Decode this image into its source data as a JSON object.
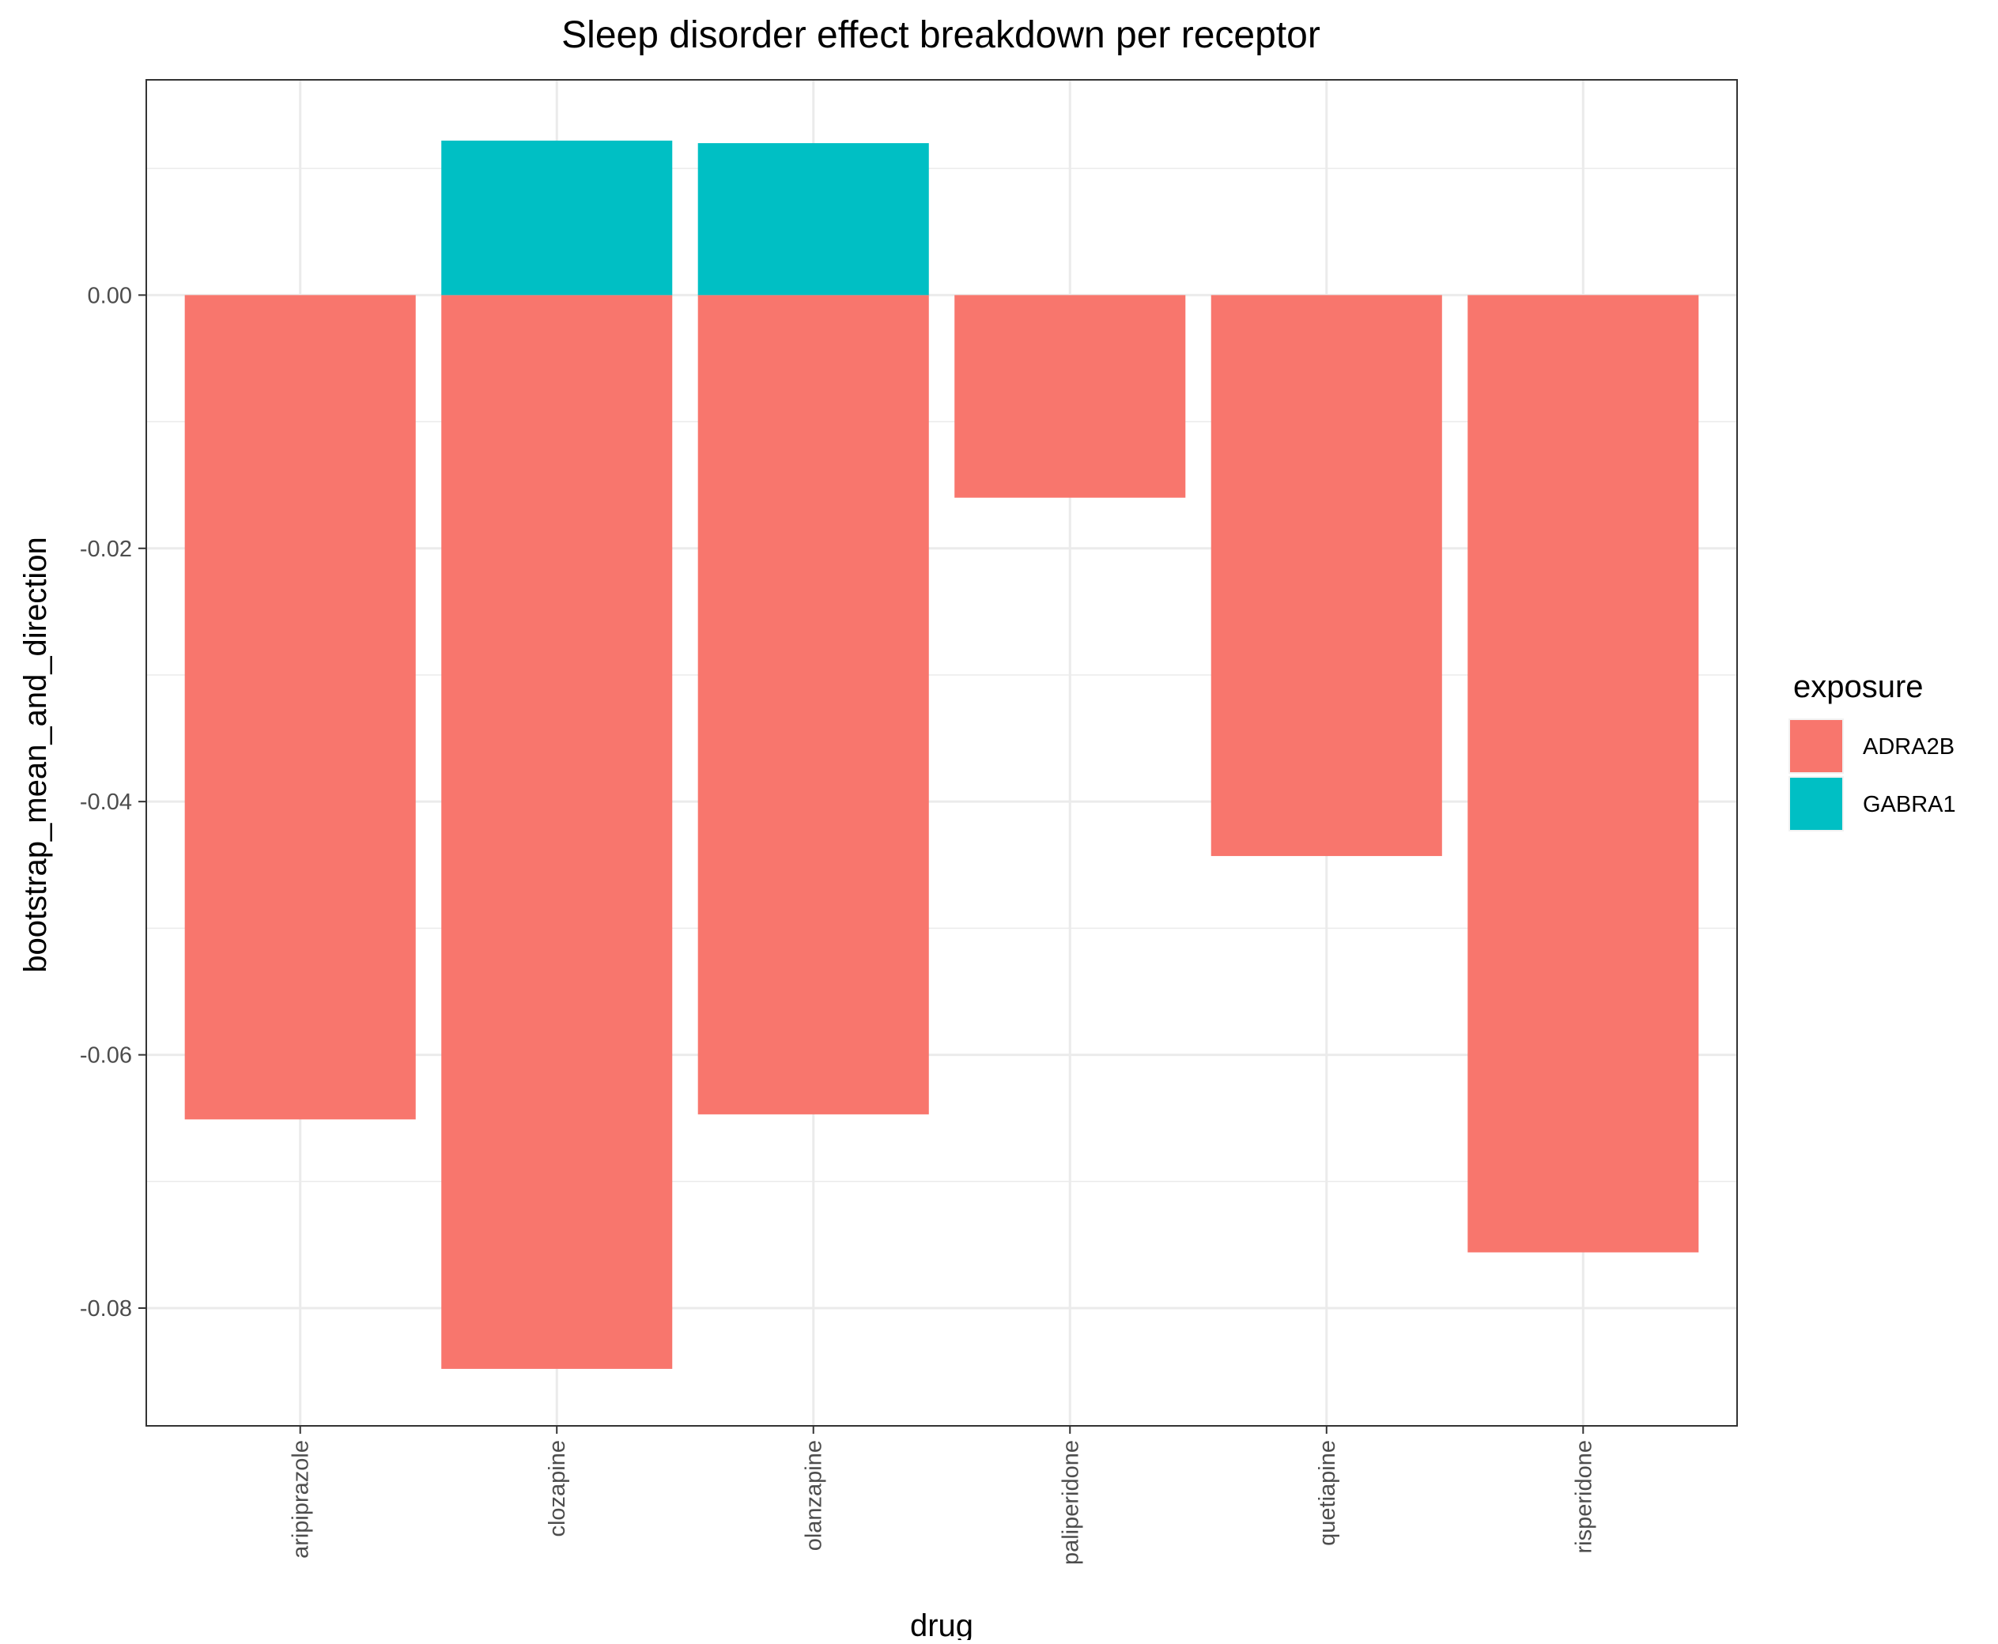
{
  "chart_data": {
    "type": "bar",
    "title": "Sleep disorder effect breakdown per receptor",
    "xlabel": "drug",
    "ylabel": "bootstrap_mean_and_direction",
    "categories": [
      "aripiprazole",
      "clozapine",
      "olanzapine",
      "paliperidone",
      "quetiapine",
      "risperidone"
    ],
    "series": [
      {
        "name": "ADRA2B",
        "values": [
          -0.0651,
          -0.0848,
          -0.0647,
          -0.016,
          -0.0443,
          -0.0756
        ]
      },
      {
        "name": "GABRA1",
        "values": [
          0,
          0.0122,
          0.012,
          0,
          0,
          0
        ]
      }
    ],
    "stacked": true,
    "ylim": [
      -0.0893,
      0.017
    ],
    "yticks": [
      0.0,
      -0.02,
      -0.04,
      -0.06,
      -0.08
    ],
    "ytick_labels": [
      "0.00",
      "-0.02",
      "-0.04",
      "-0.06",
      "-0.08"
    ],
    "grid": true,
    "legend": {
      "title": "exposure",
      "position": "right"
    },
    "colors": {
      "ADRA2B": "#F8766D",
      "GABRA1": "#00BFC4"
    },
    "theme": {
      "panel_border": "#333333",
      "grid_major": "#ebebeb",
      "grid_minor": "#f4f4f4"
    }
  }
}
